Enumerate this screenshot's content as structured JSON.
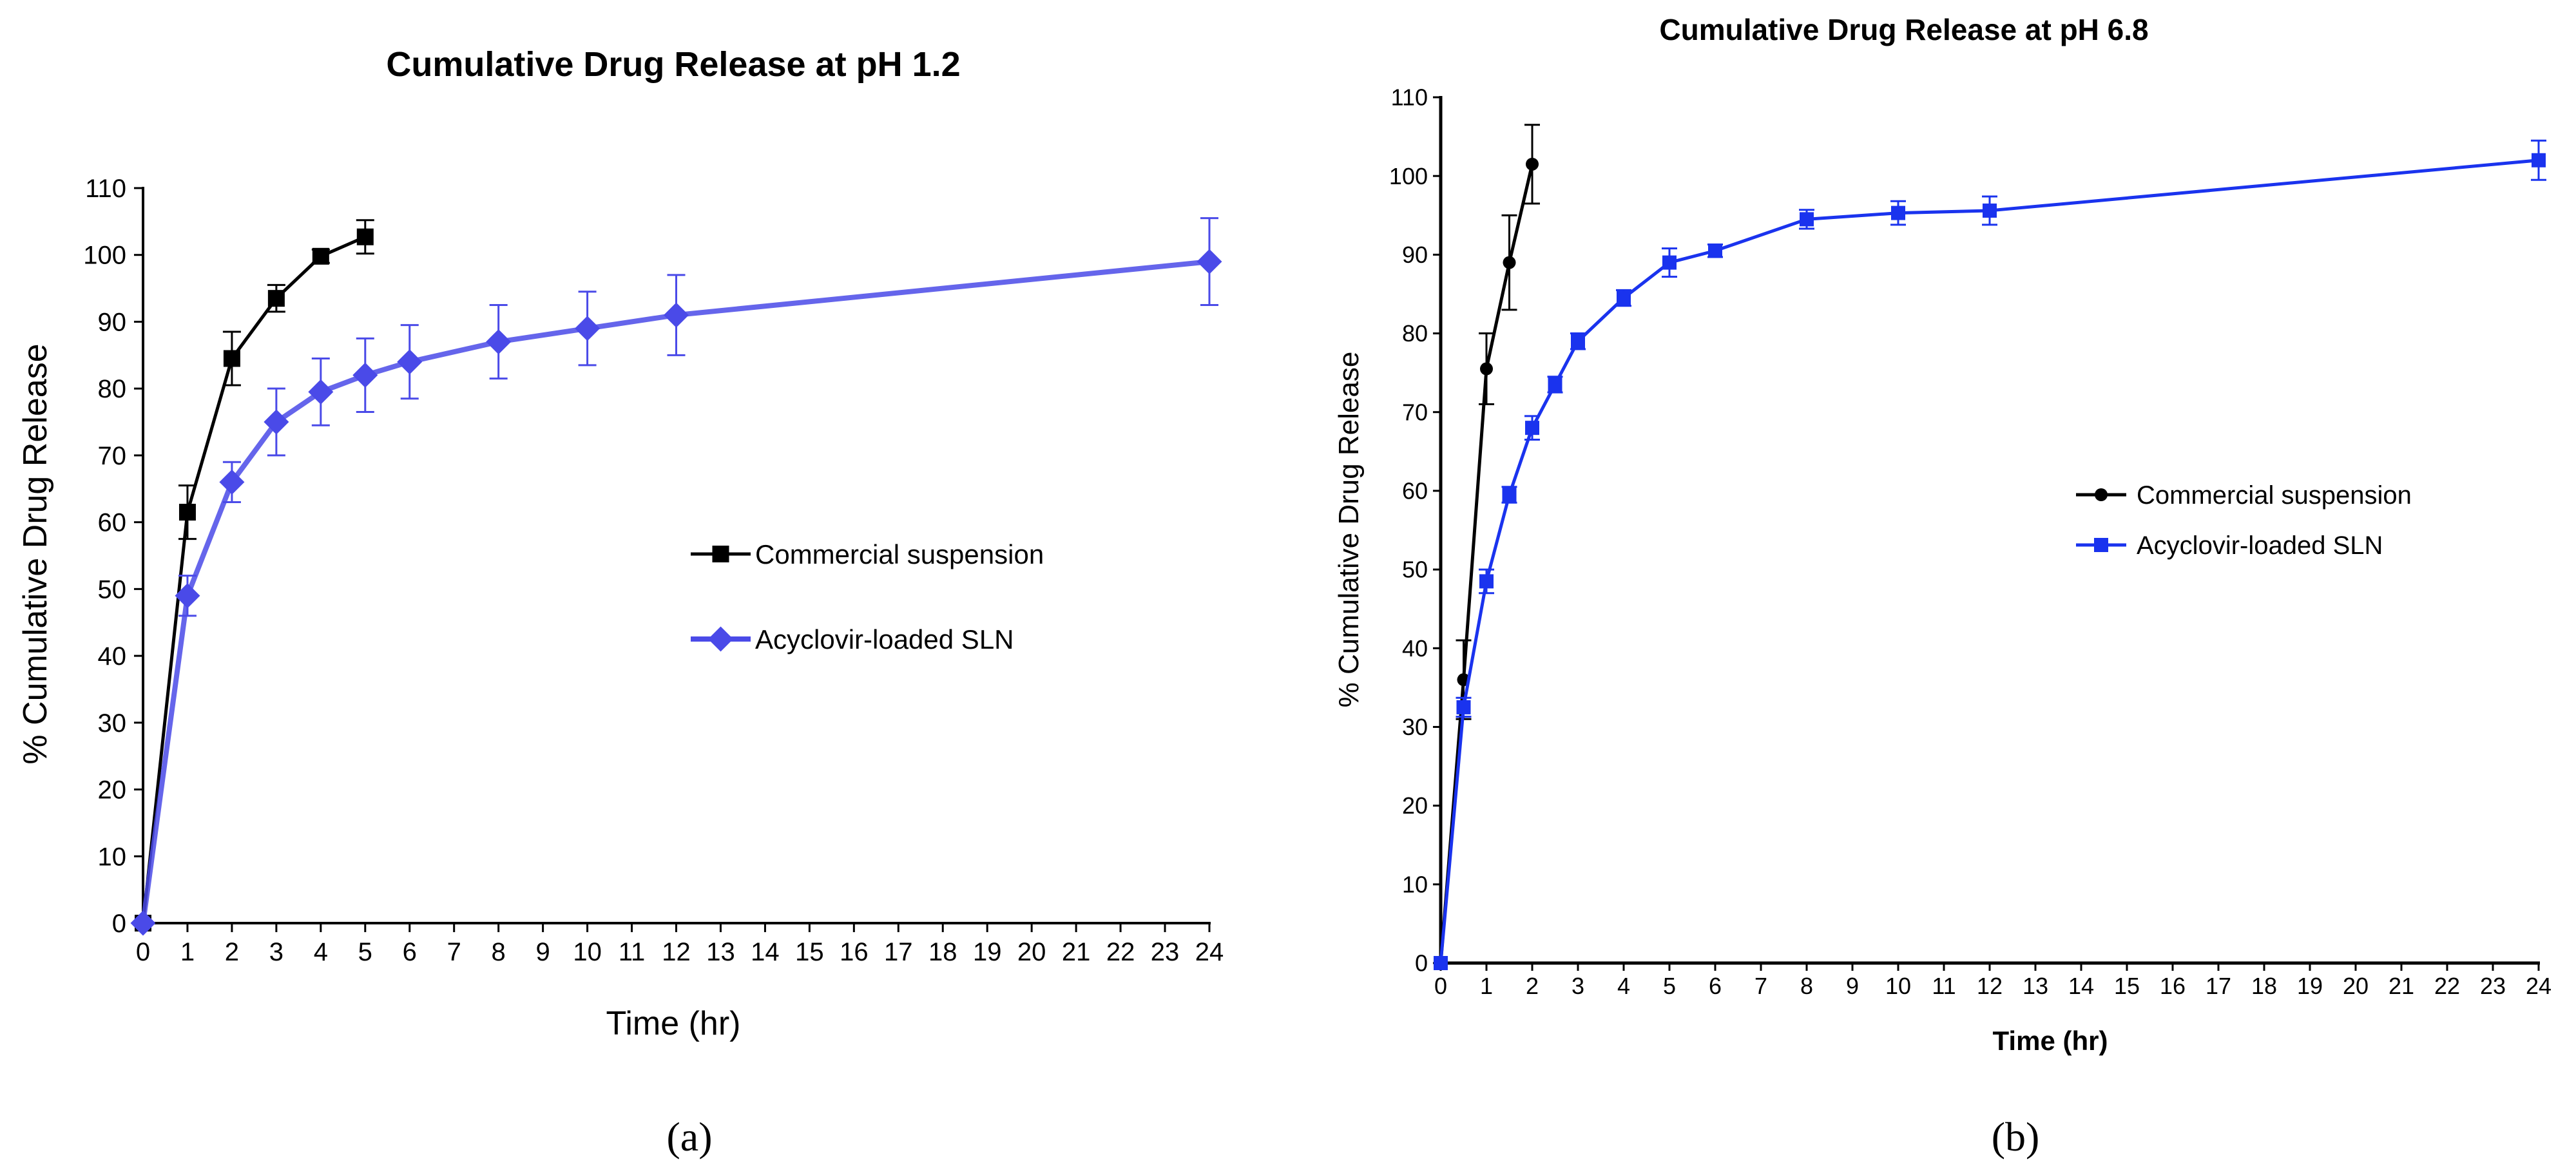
{
  "chart_data": [
    {
      "id": "a",
      "type": "line",
      "title": "Cumulative Drug Release at pH 1.2",
      "xlabel": "Time (hr)",
      "ylabel": "% Cumulative Drug Release",
      "xlim": [
        0,
        24
      ],
      "ylim": [
        0,
        110
      ],
      "xticks": [
        0,
        1,
        2,
        3,
        4,
        5,
        6,
        7,
        8,
        9,
        10,
        11,
        12,
        13,
        14,
        15,
        16,
        17,
        18,
        19,
        20,
        21,
        22,
        23,
        24
      ],
      "yticks": [
        0,
        10,
        20,
        30,
        40,
        50,
        60,
        70,
        80,
        90,
        100,
        110
      ],
      "grid": false,
      "legend_position": "center-right",
      "caption": "(a)",
      "series": [
        {
          "name": "Commercial suspension",
          "color": "#000000",
          "marker": "square",
          "x": [
            0,
            1,
            2,
            3,
            4,
            5
          ],
          "y": [
            0,
            61.5,
            84.5,
            93.5,
            99.8,
            102.7
          ],
          "err": [
            0,
            4,
            4,
            2,
            1,
            2.5
          ]
        },
        {
          "name": "Acyclovir-loaded SLN",
          "color": "#4a4ae8",
          "marker": "diamond",
          "x": [
            0,
            1,
            2,
            3,
            4,
            5,
            6,
            8,
            10,
            12,
            24
          ],
          "y": [
            0,
            49,
            66,
            75,
            79.5,
            82,
            84,
            87,
            89,
            91,
            99
          ],
          "err": [
            0,
            3,
            3,
            5,
            5,
            5.5,
            5.5,
            5.5,
            5.5,
            6,
            6.5
          ]
        }
      ]
    },
    {
      "id": "b",
      "type": "line",
      "title": "Cumulative Drug Release at pH 6.8",
      "xlabel": "Time (hr)",
      "ylabel": "% Cumulative Drug Release",
      "xlim": [
        0,
        24
      ],
      "ylim": [
        0,
        110
      ],
      "xticks": [
        0,
        1,
        2,
        3,
        4,
        5,
        6,
        7,
        8,
        9,
        10,
        11,
        12,
        13,
        14,
        15,
        16,
        17,
        18,
        19,
        20,
        21,
        22,
        23,
        24
      ],
      "yticks": [
        0,
        10,
        20,
        30,
        40,
        50,
        60,
        70,
        80,
        90,
        100,
        110
      ],
      "grid": false,
      "legend_position": "center-right",
      "caption": "(b)",
      "series": [
        {
          "name": "Commercial suspension",
          "color": "#000000",
          "marker": "circle",
          "x": [
            0,
            0.5,
            1,
            1.5,
            2
          ],
          "y": [
            0,
            36,
            75.5,
            89,
            101.5
          ],
          "err": [
            0,
            5,
            4.5,
            6,
            5
          ]
        },
        {
          "name": "Acyclovir-loaded SLN",
          "color": "#1a33ee",
          "marker": "square",
          "x": [
            0,
            0.5,
            1,
            1.5,
            2,
            2.5,
            3,
            4,
            5,
            6,
            8,
            10,
            12,
            24
          ],
          "y": [
            0,
            32.5,
            48.5,
            59.5,
            68,
            73.5,
            79,
            84.5,
            89,
            90.5,
            94.5,
            95.3,
            95.6,
            102
          ],
          "err": [
            0,
            1.2,
            1.5,
            1,
            1.5,
            1,
            1,
            1,
            1.8,
            0.8,
            1.2,
            1.5,
            1.8,
            2.5
          ]
        }
      ]
    }
  ]
}
